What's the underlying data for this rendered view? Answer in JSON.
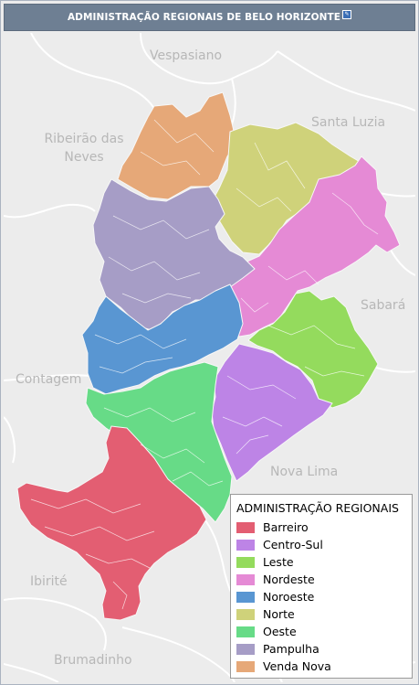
{
  "header": {
    "title": "ADMINISTRAÇÃO REGIONAIS DE BELO HORIZONTE",
    "edit_icon": "edit-icon"
  },
  "map": {
    "neighbor_labels": {
      "vespasiano": "Vespasiano",
      "santa_luzia": "Santa Luzia",
      "ribeirao_das_neves": "Ribeirão das\nNeves",
      "sabara": "Sabará",
      "contagem": "Contagem",
      "nova_lima": "Nova Lima",
      "ibirite": "Ibirité",
      "brumadinho": "Brumadinho"
    },
    "regions": {
      "venda_nova": {
        "name": "Venda Nova",
        "color": "#e6a878"
      },
      "norte": {
        "name": "Norte",
        "color": "#cfd27a"
      },
      "nordeste": {
        "name": "Nordeste",
        "color": "#e58ad5"
      },
      "pampulha": {
        "name": "Pampulha",
        "color": "#a69dc6"
      },
      "noroeste": {
        "name": "Noroeste",
        "color": "#5996d2"
      },
      "leste": {
        "name": "Leste",
        "color": "#94db5d"
      },
      "centro_sul": {
        "name": "Centro-Sul",
        "color": "#bd84e6"
      },
      "oeste": {
        "name": "Oeste",
        "color": "#67db87"
      },
      "barreiro": {
        "name": "Barreiro",
        "color": "#e35e72"
      }
    }
  },
  "legend": {
    "title": "ADMINISTRAÇÃO REGIONAIS",
    "items": [
      {
        "label": "Barreiro",
        "color": "#e35e72"
      },
      {
        "label": "Centro-Sul",
        "color": "#bd84e6"
      },
      {
        "label": "Leste",
        "color": "#94db5d"
      },
      {
        "label": "Nordeste",
        "color": "#e58ad5"
      },
      {
        "label": "Noroeste",
        "color": "#5996d2"
      },
      {
        "label": "Norte",
        "color": "#cfd27a"
      },
      {
        "label": "Oeste",
        "color": "#67db87"
      },
      {
        "label": "Pampulha",
        "color": "#a69dc6"
      },
      {
        "label": "Venda Nova",
        "color": "#e6a878"
      }
    ]
  }
}
